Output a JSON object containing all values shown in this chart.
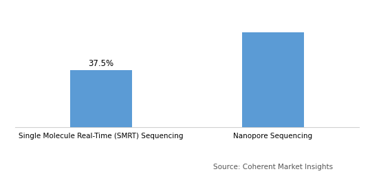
{
  "categories": [
    "Single Molecule Real-Time (SMRT) Sequencing",
    "Nanopore Sequencing"
  ],
  "values": [
    37.5,
    62.5
  ],
  "bar_color": "#5b9bd5",
  "label_first_bar": "37.5%",
  "source_text": "Source: Coherent Market Insights",
  "ylim": [
    0,
    75
  ],
  "bar_width": 0.18,
  "x_positions": [
    0.25,
    0.75
  ],
  "xlim": [
    0,
    1
  ],
  "background_color": "#ffffff",
  "label_fontsize": 8.5,
  "source_fontsize": 7.5,
  "tick_fontsize": 7.5,
  "border_color": "#d0d0d0"
}
